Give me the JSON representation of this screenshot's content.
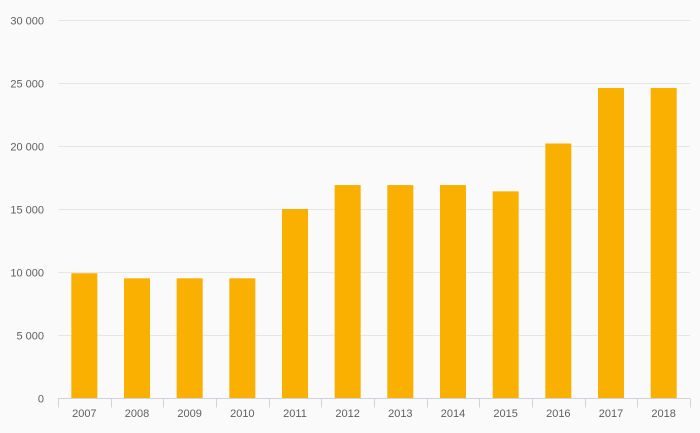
{
  "chart_data": {
    "type": "bar",
    "title": "",
    "xlabel": "",
    "ylabel": "",
    "categories": [
      "2007",
      "2008",
      "2009",
      "2010",
      "2011",
      "2012",
      "2013",
      "2014",
      "2015",
      "2016",
      "2017",
      "2018"
    ],
    "values": [
      9900,
      9500,
      9500,
      9500,
      15000,
      16900,
      16900,
      16900,
      16400,
      20200,
      24600,
      24600
    ],
    "ylim": [
      0,
      30000
    ],
    "yticks": [
      0,
      5000,
      10000,
      15000,
      20000,
      25000,
      30000
    ],
    "ytick_labels": [
      "0",
      "5 000",
      "10 000",
      "15 000",
      "20 000",
      "25 000",
      "30 000"
    ],
    "grid": true,
    "legend": "none",
    "bar_color": "#f9b000",
    "grid_color": "#e6e6e6",
    "axis_color": "#cfd3e0",
    "background_color": "#fafafa"
  }
}
